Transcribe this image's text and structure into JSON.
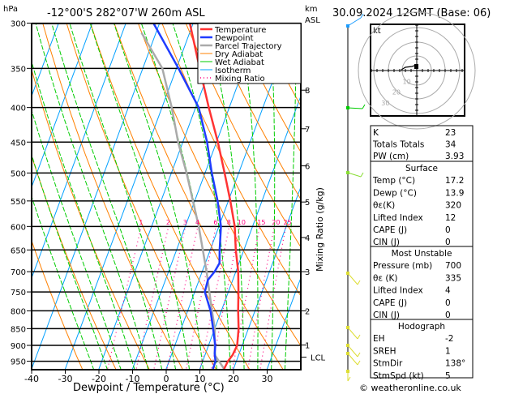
{
  "header": {
    "hpa_label": "hPa",
    "location": "-12°00'S 282°07'W 260m ASL",
    "km_label": "km",
    "asl_label": "ASL",
    "datetime": "30.09.2024 12GMT (Base: 06)"
  },
  "footer": {
    "credit": "© weatheronline.co.uk"
  },
  "colors": {
    "temperature": "#ff3333",
    "dewpoint": "#1f3cff",
    "parcel": "#aaaaaa",
    "dry_adiabat": "#ff8000",
    "wet_adiabat": "#00cc00",
    "isotherm": "#00a0ff",
    "mixing_ratio": "#ff0080"
  },
  "chart_data": {
    "type": "line",
    "title": "Skew-T log-P",
    "xlabel": "Dewpoint / Temperature (°C)",
    "ylabel": "hPa",
    "y2label": "Mixing Ratio (g/kg)",
    "xlim": [
      -40,
      40
    ],
    "ylim": [
      975,
      300
    ],
    "x_ticks": [
      -40,
      -30,
      -20,
      -10,
      0,
      10,
      20,
      30
    ],
    "pressure_ticks": [
      300,
      350,
      400,
      450,
      500,
      550,
      600,
      650,
      700,
      750,
      800,
      850,
      900,
      950
    ],
    "mixing_ratio_labels": [
      1,
      2,
      3,
      4,
      6,
      8,
      10,
      15,
      20,
      25
    ],
    "km_ticks": [
      {
        "label": "8",
        "p": 377
      },
      {
        "label": "7",
        "p": 430
      },
      {
        "label": "6",
        "p": 488
      },
      {
        "label": "5",
        "p": 552
      },
      {
        "label": "4",
        "p": 623
      },
      {
        "label": "3",
        "p": 700
      },
      {
        "label": "2",
        "p": 800
      },
      {
        "label": "1",
        "p": 899
      },
      {
        "label": "LCL",
        "p": 937
      }
    ],
    "legend": [
      "Temperature",
      "Dewpoint",
      "Parcel Trajectory",
      "Dry Adiabat",
      "Wet Adiabat",
      "Isotherm",
      "Mixing Ratio"
    ],
    "series": [
      {
        "name": "Temperature",
        "p": [
          975,
          950,
          930,
          900,
          850,
          800,
          750,
          700,
          650,
          600,
          550,
          500,
          450,
          400,
          350,
          300
        ],
        "t": [
          17.2,
          17.5,
          18.2,
          18.5,
          17.1,
          15.0,
          13.0,
          10.7,
          7.6,
          4.7,
          0.6,
          -4.2,
          -9.6,
          -16.1,
          -23.1,
          -31.0
        ]
      },
      {
        "name": "Dewpoint",
        "p": [
          975,
          950,
          925,
          900,
          850,
          800,
          750,
          720,
          700,
          680,
          650,
          600,
          550,
          500,
          450,
          400,
          350,
          300
        ],
        "t": [
          13.9,
          13.8,
          12.7,
          12.0,
          9.5,
          6.8,
          3.0,
          2.6,
          3.7,
          4.2,
          2.8,
          0.6,
          -3.2,
          -8.0,
          -12.8,
          -19.1,
          -29.4,
          -41.8
        ]
      },
      {
        "name": "Parcel Trajectory",
        "p": [
          975,
          930,
          850,
          800,
          700,
          600,
          500,
          450,
          400,
          350,
          310
        ],
        "t": [
          17.2,
          12.9,
          10.0,
          7.2,
          1.3,
          -6.0,
          -15.5,
          -21.4,
          -27.1,
          -34.2,
          -44.3
        ]
      }
    ]
  },
  "hodograph": {
    "unit": "kt",
    "rings": [
      "10",
      "20",
      "30"
    ]
  },
  "indices": {
    "k_label": "K",
    "k": "23",
    "tt_label": "Totals Totals",
    "tt": "34",
    "pw_label": "PW (cm)",
    "pw": "3.93"
  },
  "surface": {
    "title": "Surface",
    "rows": [
      {
        "label": "Temp (°C)",
        "value": "17.2"
      },
      {
        "label": "Dewp (°C)",
        "value": "13.9"
      },
      {
        "label": "θε(K)",
        "value": "320"
      },
      {
        "label": "Lifted Index",
        "value": "12"
      },
      {
        "label": "CAPE (J)",
        "value": "0"
      },
      {
        "label": "CIN (J)",
        "value": "0"
      }
    ]
  },
  "most_unstable": {
    "title": "Most Unstable",
    "rows": [
      {
        "label": "Pressure (mb)",
        "value": "700"
      },
      {
        "label": "θε (K)",
        "value": "335"
      },
      {
        "label": "Lifted Index",
        "value": "4"
      },
      {
        "label": "CAPE (J)",
        "value": "0"
      },
      {
        "label": "CIN (J)",
        "value": "0"
      }
    ]
  },
  "hodo_stats": {
    "title": "Hodograph",
    "rows": [
      {
        "label": "EH",
        "value": "-2"
      },
      {
        "label": "SREH",
        "value": "1"
      },
      {
        "label": "StmDir",
        "value": "138°"
      },
      {
        "label": "StmSpd (kt)",
        "value": "5"
      }
    ]
  }
}
